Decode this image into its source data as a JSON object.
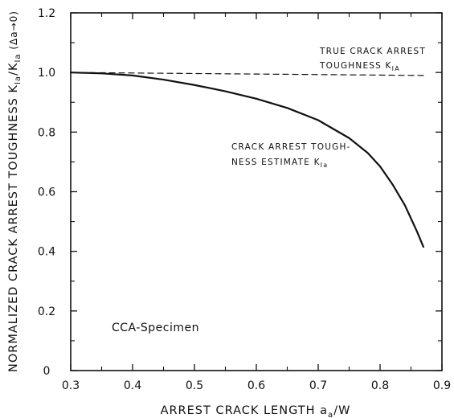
{
  "chart_data": {
    "type": "line",
    "title": "",
    "xlabel": "ARREST CRACK LENGTH a_a/W",
    "ylabel": "NORMALIZED CRACK ARREST TOUGHNESS K_Ia / K_Ia (Δa→0)",
    "xlim": [
      0.3,
      0.9
    ],
    "ylim": [
      0,
      1.2
    ],
    "x_ticks": [
      "0.3",
      "0.4",
      "0.5",
      "0.6",
      "0.7",
      "0.8",
      "0.9"
    ],
    "y_ticks": [
      "0",
      "0.2",
      "0.4",
      "0.6",
      "0.8",
      "1.0",
      "1.2"
    ],
    "grid": false,
    "legend": "none",
    "series": [
      {
        "name": "TRUE CRACK ARREST TOUGHNESS K_IA",
        "style": "dashed",
        "x": [
          0.3,
          0.87
        ],
        "y": [
          1.0,
          0.99
        ]
      },
      {
        "name": "CRACK ARREST TOUGHNESS ESTIMATE K_Ia",
        "style": "solid",
        "x": [
          0.3,
          0.35,
          0.4,
          0.45,
          0.5,
          0.55,
          0.6,
          0.65,
          0.7,
          0.75,
          0.78,
          0.8,
          0.82,
          0.84,
          0.85,
          0.86,
          0.87
        ],
        "y": [
          1.0,
          0.997,
          0.99,
          0.976,
          0.958,
          0.937,
          0.912,
          0.881,
          0.84,
          0.78,
          0.73,
          0.685,
          0.625,
          0.555,
          0.51,
          0.465,
          0.415
        ]
      }
    ],
    "annotations": {
      "true_line1": "TRUE CRACK ARREST",
      "true_line2_prefix": "TOUGHNESS K",
      "true_sub": "IA",
      "estimate_line1": "CRACK ARREST TOUGH-",
      "estimate_line2_prefix": "NESS ESTIMATE K",
      "estimate_sub": "Ia",
      "specimen": "CCA-Specimen"
    },
    "axis_text": {
      "x_prefix": "ARREST CRACK LENGTH  a",
      "x_sub": "a",
      "x_suffix": "/W",
      "y_prefix": "NORMALIZED CRACK ARREST TOUGHNESS  K",
      "y_sub1": "Ia",
      "y_mid": "/K",
      "y_sub2": "Ia",
      "y_suffix": " (Δa→0)"
    }
  }
}
